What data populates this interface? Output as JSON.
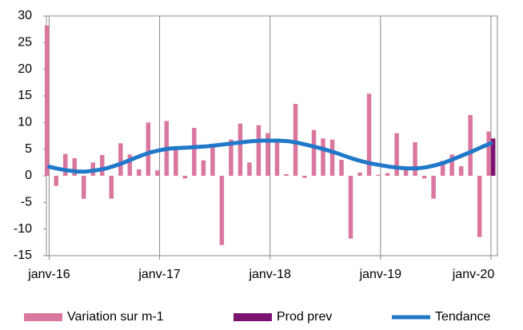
{
  "chart_data": {
    "type": "bar",
    "categories": [
      "janv-16",
      null,
      null,
      null,
      null,
      null,
      null,
      null,
      null,
      null,
      null,
      null,
      "janv-17",
      null,
      null,
      null,
      null,
      null,
      null,
      null,
      null,
      null,
      null,
      null,
      "janv-18",
      null,
      null,
      null,
      null,
      null,
      null,
      null,
      null,
      null,
      null,
      null,
      "janv-19",
      null,
      null,
      null,
      null,
      null,
      null,
      null,
      null,
      null,
      null,
      null,
      "janv-20"
    ],
    "series": [
      {
        "name": "Variation sur m-1",
        "type": "bar",
        "color": "#d9779f",
        "values": [
          28.2,
          -1.9,
          4.1,
          3.3,
          -4.3,
          2.5,
          3.9,
          -4.3,
          6.1,
          4.0,
          1.2,
          10.0,
          1.0,
          10.3,
          5.0,
          -0.5,
          9.0,
          2.9,
          5.5,
          -13.0,
          6.8,
          9.8,
          2.5,
          9.5,
          8.0,
          6.5,
          0.3,
          13.5,
          -0.4,
          8.6,
          7.0,
          6.8,
          3.0,
          -11.8,
          0.6,
          15.4,
          0.2,
          0.5,
          8.0,
          1.3,
          6.3,
          -0.5,
          -4.3,
          2.8,
          4.0,
          1.8,
          11.4,
          -11.5,
          8.3
        ]
      },
      {
        "name": "Prod prev",
        "type": "bar",
        "color": "#7b1470",
        "values": [
          null,
          null,
          null,
          null,
          null,
          null,
          null,
          null,
          null,
          null,
          null,
          null,
          null,
          null,
          null,
          null,
          null,
          null,
          null,
          null,
          null,
          null,
          null,
          null,
          null,
          null,
          null,
          null,
          null,
          null,
          null,
          null,
          null,
          null,
          null,
          null,
          null,
          null,
          null,
          null,
          null,
          null,
          null,
          null,
          null,
          null,
          null,
          null,
          7.0
        ]
      },
      {
        "name": "Tendance",
        "type": "line",
        "color": "#1f78c8",
        "values": [
          1.7,
          1.3,
          1.0,
          0.8,
          0.8,
          1.0,
          1.3,
          1.8,
          2.4,
          3.1,
          3.8,
          4.4,
          4.8,
          5.1,
          5.2,
          5.3,
          5.4,
          5.5,
          5.7,
          5.9,
          6.1,
          6.3,
          6.5,
          6.6,
          6.6,
          6.6,
          6.5,
          6.2,
          5.8,
          5.4,
          4.9,
          4.4,
          3.8,
          3.2,
          2.7,
          2.3,
          2.0,
          1.7,
          1.5,
          1.4,
          1.4,
          1.6,
          2.0,
          2.5,
          3.2,
          3.9,
          4.6,
          5.4,
          6.1
        ]
      }
    ],
    "ylim": [
      -15,
      30
    ],
    "yticks": [
      -15,
      -10,
      -5,
      0,
      5,
      10,
      15,
      20,
      25,
      30
    ],
    "grid": true,
    "legend": "bottom"
  }
}
